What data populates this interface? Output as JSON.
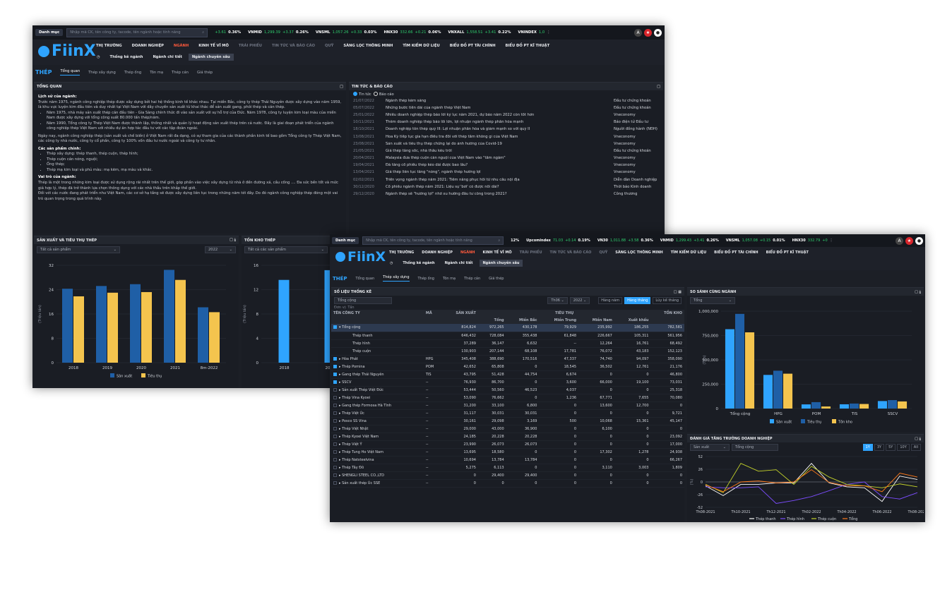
{
  "w1": {
    "top": {
      "menu_btn": "Danh mục",
      "search_placeholder": "Nhập mã CK, tên công ty, tacode, tên ngành hoặc tính năng",
      "tickers": [
        {
          "chg": "+3.61",
          "pct": "0.36%"
        },
        {
          "name": "VNMID",
          "val": "1,299.39",
          "chg": "+3.37",
          "pct": "0.26%"
        },
        {
          "name": "VNSML",
          "val": "1,057.26",
          "chg": "+0.33",
          "pct": "0.03%"
        },
        {
          "name": "HNX30",
          "val": "332.66",
          "chg": "+0.21",
          "pct": "0.06%"
        },
        {
          "name": "VNXALL",
          "val": "1,558.51",
          "chg": "+3.41",
          "pct": "0.22%"
        },
        {
          "name": "VNINDEX",
          "val": "1,0"
        }
      ]
    },
    "logo": "FiinX",
    "menu": [
      "THỊ TRƯỜNG",
      "DOANH NGHIỆP",
      "NGÀNH",
      "KINH TẾ VĨ MÔ",
      "TRÁI PHIẾU",
      "TIN TỨC VÀ BÁO CÁO",
      "QUỸ",
      "SÀNG LỌC THÔNG MINH",
      "TÌM KIẾM DỮ LIỆU",
      "BIỂU ĐỒ PT TÀI CHÍNH",
      "BIỂU ĐỒ PT KĨ THUẬT"
    ],
    "submenu": [
      "Thống kê ngành",
      "Ngành chi tiết",
      "Ngành chuyên sâu"
    ],
    "tabs": {
      "heading": "THÉP",
      "items": [
        "Tổng quan",
        "Thép xây dựng",
        "Thép ống",
        "Tôn mạ",
        "Thép cán",
        "Giá thép"
      ]
    },
    "overview": {
      "title": "TỔNG QUAN",
      "h1": "Lịch sử của ngành:",
      "p1": "Trước năm 1975, ngành công nghiệp thép được xây dựng bởi hai hệ thống kinh tế khác nhau. Tại miền Bắc, công ty thép Thái Nguyên được xây dựng vào năm 1959, là khu vực luyện kim đầu tiên và duy nhất tại Việt Nam với dây chuyền sản xuất từ khai thác để sản xuất gang, phôi thép và cán thép.",
      "b1": "Năm 1975, nhà máy sản xuất thép cán đầu tiên - Gia Sàng chính thức đi vào sản xuất với sự hỗ trợ của Đức. Năm 1978, công ty luyện kim loại màu của miền Nam được xây dựng với tổng công suất 80.000 tấn thép/năm.",
      "b2": "Năm 1990, Tổng công ty Thép Việt Nam được thành lập, thống nhất và quản lý hoạt động sản xuất thép trên cả nước. Đây là giai đoạn phát triển của ngành công nghiệp thép Việt Nam với nhiều dự án hợp tác đầu tư với các tập đoàn ngoài.",
      "p2": "Ngày nay, ngành công nghiệp thép (sản xuất và chế biến) ở Việt Nam rất đa dạng, có sự tham gia của các thành phần kinh tế bao gồm Tổng công ty Thép Việt Nam, các công ty nhà nước, công ty cổ phần, công ty 100% vốn đầu tư nước ngoài và công ty tư nhân.",
      "h2": "Các sản phẩm chính:",
      "products": [
        "Thép xây dựng: thép thanh, thép cuộn, thép hình;",
        "Thép cuộn cán nóng, nguội;",
        "Ống thép;",
        "Thép mạ kim loại và phủ màu: mạ kẽm, mạ màu và khác."
      ],
      "h3": "Vai trò của ngành:",
      "p3": "Thép là một trong những kim loại được sử dụng rộng rãi nhất trên thế giới, góp phần vào việc xây dựng từ nhà ở đến đường xá, cầu cống .... Đa sức bền tốt và mức giá hợp lý, thép đã trở thành lựa chọn thông dụng với các nhà thầu trên khắp thế giới.",
      "p4": "Đối với các nước đang phát triển như Việt Nam, các cơ sở hạ tầng sẽ được xây dựng liên tục trong những năm tới đây. Do đó ngành công nghiệp thép đóng một vai trò quan trọng trong quá trình này."
    },
    "news": {
      "title": "TIN TỨC & BÁO CÁO",
      "radio1": "Tin tức",
      "radio2": "Báo cáo",
      "rows": [
        [
          "21/07/2022",
          "Ngành thép kém sáng",
          "Đầu tư chứng khoán"
        ],
        [
          "05/07/2022",
          "Những bước tiến dài của ngành thép Việt Nam",
          "Đầu tư chứng khoán"
        ],
        [
          "25/01/2022",
          "Nhiều doanh nghiệp thép báo lời kỷ lục năm 2021, dự báo năm 2022 còn tốt hơn",
          "Vneconomy"
        ],
        [
          "10/11/2021",
          "Thêm doanh nghiệp thép báo lỗi lớn, lợi nhuận ngành thép phân hóa mạnh",
          "Báo điện tử Đầu tư"
        ],
        [
          "18/10/2021",
          "Doanh nghiệp tôn thép quý III: Lợi nhuận phân hóa và giảm mạnh so với quý II",
          "Người đồng hành (NĐH)"
        ],
        [
          "13/08/2021",
          "Hoa Kỳ tiếp tục gia hạn điều tra đối với thép tấm không gỉ của Việt Nam",
          "Vneconomy"
        ],
        [
          "23/08/2021",
          "Sản xuất và tiêu thụ thép chững lại do ảnh hưởng của Covid-19",
          "Vneconomy"
        ],
        [
          "21/05/2021",
          "Giá thép tăng sốc, nhà thầu kêu trời",
          "Đầu tư chứng khoán"
        ],
        [
          "20/04/2021",
          "Malaysia đưa thép cuộn cán nguội của Việt Nam vào \"tầm ngắm\"",
          "Vneconomy"
        ],
        [
          "19/04/2021",
          "Đà tăng cổ phiếu thép kéo dài được bao lâu?",
          "Vneconomy"
        ],
        [
          "13/04/2021",
          "Giá thép liên tục tăng \"nóng\", ngành thép hưởng lợi",
          "Vneconomy"
        ],
        [
          "02/02/2021",
          "Triển vọng ngành thép năm 2021: Tiềm năng phục hồi từ nhu cầu nội địa",
          "Diễn đàn Doanh nghiệp"
        ],
        [
          "30/12/2020",
          "Cổ phiếu ngành thép năm 2021: Liệu sự 'bơi' có được nối dài?",
          "Thời báo Kinh doanh"
        ],
        [
          "29/12/2020",
          "Ngành thép sẽ \"hưởng lợi\" nhờ xu hướng đầu tư công trong 2021?",
          "Công thương"
        ]
      ]
    },
    "prod_panel": {
      "title": "SẢN XUẤT VÀ TIÊU THỤ THÉP",
      "filter": "Tất cả sản phẩm",
      "year": "2022",
      "ylabel": "(Triệu tấn)",
      "legend": [
        "Sản xuất",
        "Tiêu thụ"
      ]
    },
    "inv_panel": {
      "title": "TỒN KHO THÉP",
      "filter": "Tất cả các sản phẩm",
      "ylabel": "(Triệu tấn)"
    }
  },
  "w2": {
    "top": {
      "menu_btn": "Danh mục",
      "search_placeholder": "Nhập mã CK, tên công ty, tacode, tên ngành hoặc tính năng",
      "tickers": [
        {
          "pct": "12%"
        },
        {
          "name": "Upcomindex",
          "val": "71.03",
          "chg": "+0.14",
          "pct": "0.19%"
        },
        {
          "name": "VN30",
          "val": "1,011.88",
          "chg": "+3.58",
          "pct": "0.36%"
        },
        {
          "name": "VNMID",
          "val": "1,299.43",
          "chg": "+3.41",
          "pct": "0.26%"
        },
        {
          "name": "VNSML",
          "val": "1,057.08",
          "chg": "+0.15",
          "pct": "0.01%"
        },
        {
          "name": "HNX30",
          "val": "332.79",
          "chg": "+0",
          "pct": ""
        }
      ]
    },
    "logo": "FiinX",
    "menu": [
      "THỊ TRƯỜNG",
      "DOANH NGHIỆP",
      "NGÀNH",
      "KINH TẾ VĨ MÔ",
      "TRÁI PHIẾU",
      "TIN TỨC VÀ BÁO CÁO",
      "QUỸ",
      "SÀNG LỌC THÔNG MINH",
      "TÌM KIẾM DỮ LIỆU",
      "BIỂU ĐỒ PT TÀI CHÍNH",
      "BIỂU ĐỒ PT KĨ THUẬT"
    ],
    "submenu": [
      "Thống kê ngành",
      "Ngành chi tiết",
      "Ngành chuyên sâu"
    ],
    "tabs": {
      "heading": "THÉP",
      "items": [
        "Tổng quan",
        "Thép xây dựng",
        "Thép ống",
        "Tôn mạ",
        "Thép cán",
        "Giá thép"
      ]
    },
    "stats": {
      "title": "SỐ LIỆU THỐNG KÊ",
      "filter": "Tổng cộng",
      "unit": "Đơn vị: Tấn",
      "month": "Th06",
      "year": "2022",
      "modes": [
        "Hàng năm",
        "Hàng tháng",
        "Lũy kế tháng"
      ],
      "h": {
        "company": "TÊN CÔNG TY",
        "code": "MÃ",
        "prod": "SẢN XUẤT",
        "cons": "TIÊU THỤ",
        "stock": "TỒN KHO",
        "sub": [
          "Tổng",
          "Miền Bắc",
          "Miền Trung",
          "Miền Nam",
          "Xuất khẩu"
        ]
      },
      "rows": [
        [
          "▾ Tổng cộng",
          "",
          "814,824",
          "972,265",
          "430,178",
          "79,929",
          "235,992",
          "186,255",
          "782,581"
        ],
        [
          "Thép thanh",
          "",
          "646,432",
          "728,084",
          "355,438",
          "61,848",
          "226,667",
          "105,311",
          "561,956"
        ],
        [
          "Thép hình",
          "",
          "37,289",
          "36,147",
          "6,632",
          "--",
          "12,264",
          "16,761",
          "68,492"
        ],
        [
          "Thép cuộn",
          "",
          "130,903",
          "207,144",
          "68,108",
          "17,781",
          "76,072",
          "43,183",
          "152,123"
        ],
        [
          "▸ Hòa Phát",
          "HPG",
          "345,408",
          "388,690",
          "170,516",
          "47,337",
          "74,740",
          "94,097",
          "358,090"
        ],
        [
          "▸ Thép Pomina",
          "POM",
          "42,652",
          "65,808",
          "0",
          "18,545",
          "36,502",
          "12,761",
          "21,176"
        ],
        [
          "▸ Gang thép Thái Nguyên",
          "TIS",
          "43,795",
          "51,428",
          "44,754",
          "6,674",
          "0",
          "0",
          "46,800"
        ],
        [
          "▸ SSCV",
          "--",
          "76,930",
          "86,700",
          "0",
          "3,600",
          "66,000",
          "19,100",
          "73,031"
        ],
        [
          "▸ Sản xuất Thép Việt Đức",
          "--",
          "53,444",
          "50,560",
          "46,523",
          "4,037",
          "0",
          "0",
          "25,318"
        ],
        [
          "▸ Thép Vina Kyoei",
          "--",
          "53,090",
          "76,662",
          "0",
          "1,236",
          "67,771",
          "7,655",
          "70,080"
        ],
        [
          "▸ Gang thép Formosa Hà Tĩnh",
          "--",
          "31,200",
          "33,100",
          "6,800",
          "0",
          "13,600",
          "12,700",
          "0"
        ],
        [
          "▸ Thép Việt Úc",
          "--",
          "31,117",
          "30,031",
          "30,031",
          "0",
          "0",
          "0",
          "9,721"
        ],
        [
          "▸ Posco SS Vina",
          "--",
          "30,161",
          "29,098",
          "3,169",
          "500",
          "10,068",
          "15,361",
          "45,147"
        ],
        [
          "▸ Thép Việt Nhật",
          "--",
          "29,000",
          "43,000",
          "36,900",
          "0",
          "6,100",
          "0",
          "0"
        ],
        [
          "▸ Thép Kyoei Việt Nam",
          "--",
          "24,185",
          "20,228",
          "20,228",
          "0",
          "0",
          "0",
          "23,092"
        ],
        [
          "▸ Thép Việt Ý",
          "--",
          "23,990",
          "26,073",
          "26,073",
          "0",
          "0",
          "0",
          "17,000"
        ],
        [
          "▸ Thép Tung Ho Việt Nam",
          "--",
          "13,695",
          "18,580",
          "0",
          "0",
          "17,302",
          "1,278",
          "24,938"
        ],
        [
          "▸ Thép Natsteelvina",
          "--",
          "10,694",
          "13,784",
          "13,784",
          "0",
          "0",
          "0",
          "66,267"
        ],
        [
          "▸ Thép Tây Đô",
          "--",
          "5,275",
          "6,113",
          "0",
          "0",
          "3,110",
          "3,003",
          "1,809"
        ],
        [
          "▸ SHENGLI STEEL CO.,LTD",
          "--",
          "0",
          "29,400",
          "29,400",
          "0",
          "0",
          "0",
          "0"
        ],
        [
          "▸ Sản xuất thép Úc SSE",
          "--",
          "0",
          "0",
          "0",
          "0",
          "0",
          "0",
          "0"
        ]
      ]
    },
    "compare": {
      "title": "SO SÁNH CÙNG NGÀNH",
      "filter": "Tổng",
      "ylabel": "(Tấn)",
      "legend": [
        "Sản xuất",
        "Tiêu thụ",
        "Tồn kho"
      ]
    },
    "growth": {
      "title": "ĐÁNH GIÁ TĂNG TRƯỞNG DOANH NGHIỆP",
      "filter1": "Sản xuất",
      "filter2": "Tổng cộng",
      "ranges": [
        "1Y",
        "3Y",
        "5Y",
        "10Y",
        "All"
      ],
      "ylabel": "(%)",
      "legend": [
        "Thép thanh",
        "Thép hình",
        "Thép cuộn",
        "Tổng"
      ]
    }
  },
  "chart_data": [
    {
      "type": "bar",
      "title": "SẢN XUẤT VÀ TIÊU THỤ THÉP",
      "categories": [
        "2018",
        "2019",
        "2020",
        "2021",
        "8m-2022"
      ],
      "series": [
        {
          "name": "Sản xuất",
          "values": [
            24.3,
            25.2,
            25.8,
            30.5,
            18.2
          ]
        },
        {
          "name": "Tiêu thụ",
          "values": [
            21.8,
            23.0,
            23.2,
            27.2,
            16.6
          ]
        }
      ],
      "ylabel": "(Triệu tấn)",
      "ylim": [
        0,
        32
      ],
      "yticks": [
        0,
        8,
        16,
        24,
        32
      ],
      "colors": [
        "#1f5fa6",
        "#f4c44e"
      ]
    },
    {
      "type": "bar",
      "title": "TỒN KHO THÉP",
      "categories": [
        "2018",
        "2019"
      ],
      "values": [
        13.6,
        15.2
      ],
      "ylabel": "(Triệu tấn)",
      "ylim": [
        0,
        16
      ],
      "yticks": [
        0,
        4,
        8,
        12,
        16
      ],
      "colors": [
        "#2fa4ff"
      ]
    },
    {
      "type": "bar",
      "title": "SO SÁNH CÙNG NGÀNH",
      "categories": [
        "Tổng cộng",
        "HPG",
        "POM",
        "TIS",
        "SSCV"
      ],
      "series": [
        {
          "name": "Sản xuất",
          "values": [
            814824,
            345408,
            42652,
            43795,
            76930
          ]
        },
        {
          "name": "Tiêu thụ",
          "values": [
            972265,
            388690,
            65808,
            51428,
            86700
          ]
        },
        {
          "name": "Tồn kho",
          "values": [
            782581,
            358090,
            21176,
            46800,
            73031
          ]
        }
      ],
      "ylabel": "(Tấn)",
      "ylim": [
        0,
        1000000
      ],
      "yticks": [
        0,
        250000,
        500000,
        750000,
        1000000
      ],
      "colors": [
        "#2fa4ff",
        "#1f5fa6",
        "#f4c44e"
      ]
    },
    {
      "type": "line",
      "title": "ĐÁNH GIÁ TĂNG TRƯỞNG DOANH NGHIỆP",
      "x": [
        "Th08-2021",
        "Th09-2021",
        "Th10-2021",
        "Th11-2021",
        "Th12-2021",
        "Th01-2022",
        "Th02-2022",
        "Th03-2022",
        "Th04-2022",
        "Th05-2022",
        "Th06-2022",
        "Th07-2022",
        "Th08-2022"
      ],
      "series": [
        {
          "name": "Thép thanh",
          "values": [
            -8,
            -28,
            -5,
            -5,
            -2,
            -2,
            38,
            -2,
            -10,
            -12,
            -40,
            12,
            5
          ]
        },
        {
          "name": "Thép hình",
          "values": [
            -10,
            -12,
            -12,
            -10,
            -44,
            -38,
            -30,
            -18,
            -5,
            0,
            -30,
            -35,
            -22
          ]
        },
        {
          "name": "Thép cuộn",
          "values": [
            -5,
            -22,
            38,
            22,
            25,
            -5,
            32,
            10,
            -5,
            -8,
            -12,
            -4,
            -10
          ]
        },
        {
          "name": "Tổng",
          "values": [
            -6,
            -20,
            0,
            2,
            -2,
            0,
            25,
            -1,
            -8,
            -8,
            -20,
            18,
            10
          ]
        }
      ],
      "ylabel": "(%)",
      "ylim": [
        -52,
        52
      ],
      "yticks": [
        -52,
        -26,
        0,
        26,
        52
      ],
      "colors": [
        "#ffffff",
        "#7c4dff",
        "#c6d42a",
        "#ff7a1a"
      ]
    }
  ]
}
